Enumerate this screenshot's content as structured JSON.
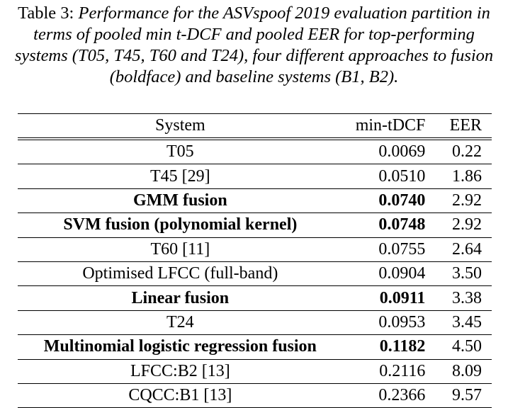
{
  "caption": {
    "label": "Table 3:",
    "text": "Performance for the ASVspoof 2019 evaluation partition in terms of pooled min t-DCF and pooled EER for top-performing systems (T05, T45, T60 and T24), four different approaches to fusion (boldface) and baseline systems (B1, B2)."
  },
  "table": {
    "headers": {
      "system": "System",
      "min_tdcf": "min-tDCF",
      "eer": "EER"
    },
    "rows": [
      {
        "system": "T05",
        "min_tdcf": "0.0069",
        "eer": "0.22",
        "bold": false
      },
      {
        "system": "T45 [29]",
        "min_tdcf": "0.0510",
        "eer": "1.86",
        "bold": false
      },
      {
        "system": "GMM fusion",
        "min_tdcf": "0.0740",
        "eer": "2.92",
        "bold": true
      },
      {
        "system": "SVM fusion (polynomial kernel)",
        "min_tdcf": "0.0748",
        "eer": "2.92",
        "bold": true
      },
      {
        "system": "T60 [11]",
        "min_tdcf": "0.0755",
        "eer": "2.64",
        "bold": false
      },
      {
        "system": "Optimised LFCC (full-band)",
        "min_tdcf": "0.0904",
        "eer": "3.50",
        "bold": false
      },
      {
        "system": "Linear fusion",
        "min_tdcf": "0.0911",
        "eer": "3.38",
        "bold": true
      },
      {
        "system": "T24",
        "min_tdcf": "0.0953",
        "eer": "3.45",
        "bold": false
      },
      {
        "system": "Multinomial logistic regression fusion",
        "min_tdcf": "0.1182",
        "eer": "4.50",
        "bold": true
      },
      {
        "system": "LFCC:B2 [13]",
        "min_tdcf": "0.2116",
        "eer": "8.09",
        "bold": false
      },
      {
        "system": "CQCC:B1 [13]",
        "min_tdcf": "0.2366",
        "eer": "9.57",
        "bold": false
      }
    ]
  }
}
